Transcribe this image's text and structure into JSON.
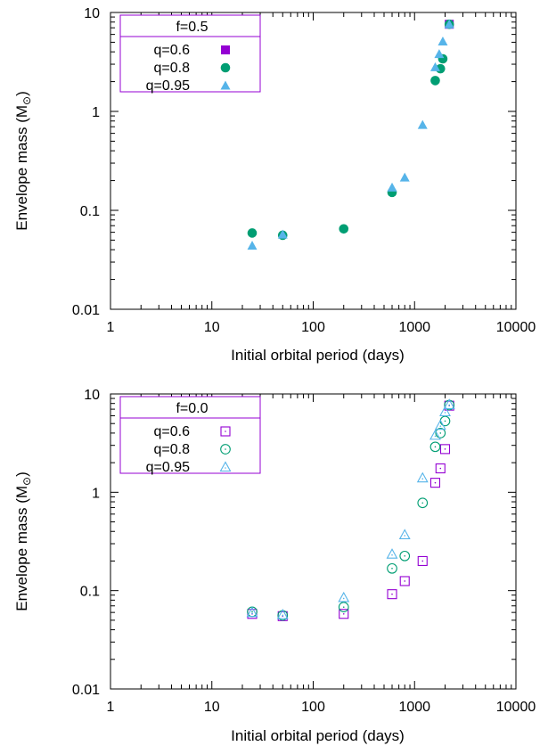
{
  "chart_data": [
    {
      "type": "scatter",
      "xscale": "log",
      "yscale": "log",
      "xlim": [
        1,
        10000
      ],
      "ylim": [
        0.01,
        10
      ],
      "xticks": [
        "1",
        "10",
        "100",
        "1000",
        "10000"
      ],
      "yticks": [
        "0.01",
        "0.1",
        "1",
        "10"
      ],
      "xlabel": "Initial orbital period (days)",
      "ylabel": "Envelope mass (M",
      "ylabel_sub": "⊙",
      "ylabel_close": ")",
      "legend_title": "f=0.5",
      "legend_position": "top-left",
      "series": [
        {
          "name": "q=0.6",
          "marker": "filled-square",
          "color": "#9400d3",
          "points": [
            [
              2200,
              7.6
            ]
          ]
        },
        {
          "name": "q=0.8",
          "marker": "filled-circle",
          "color": "#009e73",
          "points": [
            [
              25,
              0.059
            ],
            [
              50,
              0.056
            ],
            [
              200,
              0.065
            ],
            [
              600,
              0.152
            ],
            [
              1600,
              2.05
            ],
            [
              1800,
              2.7
            ],
            [
              1900,
              3.4
            ],
            [
              2200,
              7.6
            ]
          ]
        },
        {
          "name": "q=0.95",
          "marker": "filled-triangle",
          "color": "#56b4e9",
          "points": [
            [
              25,
              0.044
            ],
            [
              50,
              0.057
            ],
            [
              600,
              0.17
            ],
            [
              800,
              0.215
            ],
            [
              1200,
              0.73
            ],
            [
              1600,
              2.8
            ],
            [
              1750,
              3.8
            ],
            [
              1900,
              5.1
            ],
            [
              2200,
              7.6
            ]
          ]
        }
      ]
    },
    {
      "type": "scatter",
      "xscale": "log",
      "yscale": "log",
      "xlim": [
        1,
        10000
      ],
      "ylim": [
        0.01,
        10
      ],
      "xticks": [
        "1",
        "10",
        "100",
        "1000",
        "10000"
      ],
      "yticks": [
        "0.01",
        "0.1",
        "1",
        "10"
      ],
      "xlabel": "Initial orbital period (days)",
      "ylabel": "Envelope mass (M",
      "ylabel_sub": "⊙",
      "ylabel_close": ")",
      "legend_title": "f=0.0",
      "legend_position": "top-left",
      "series": [
        {
          "name": "q=0.6",
          "marker": "open-square",
          "color": "#9400d3",
          "points": [
            [
              25,
              0.058
            ],
            [
              50,
              0.055
            ],
            [
              200,
              0.058
            ],
            [
              600,
              0.092
            ],
            [
              800,
              0.125
            ],
            [
              1200,
              0.2
            ],
            [
              1600,
              1.25
            ],
            [
              1800,
              1.75
            ],
            [
              2000,
              2.75
            ],
            [
              2200,
              7.6
            ]
          ]
        },
        {
          "name": "q=0.8",
          "marker": "open-circle",
          "color": "#009e73",
          "points": [
            [
              25,
              0.061
            ],
            [
              50,
              0.056
            ],
            [
              200,
              0.068
            ],
            [
              600,
              0.168
            ],
            [
              800,
              0.225
            ],
            [
              1200,
              0.78
            ],
            [
              1600,
              2.9
            ],
            [
              1800,
              4.0
            ],
            [
              2000,
              5.3
            ],
            [
              2200,
              7.7
            ]
          ]
        },
        {
          "name": "q=0.95",
          "marker": "open-triangle",
          "color": "#56b4e9",
          "points": [
            [
              25,
              0.06
            ],
            [
              50,
              0.057
            ],
            [
              200,
              0.085
            ],
            [
              600,
              0.235
            ],
            [
              800,
              0.37
            ],
            [
              1200,
              1.4
            ],
            [
              1600,
              3.8
            ],
            [
              1800,
              4.8
            ],
            [
              2000,
              6.6
            ],
            [
              2200,
              7.8
            ]
          ]
        }
      ]
    }
  ]
}
